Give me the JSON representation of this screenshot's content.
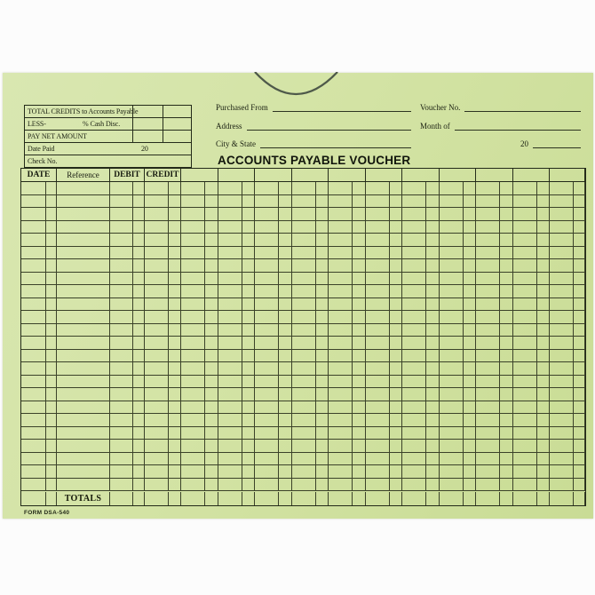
{
  "document": {
    "kind": "accounts-payable-voucher-envelope",
    "title": "ACCOUNTS PAYABLE VOUCHER",
    "form_number": "FORM DSA-540",
    "paper_color": "#d3e3a4",
    "line_color": "#2a3020"
  },
  "credits_box": {
    "row1_label": "TOTAL CREDITS to Accounts Payable",
    "row2_label": "LESS-",
    "row2_sublabel": "% Cash Disc.",
    "row3_label": "PAY NET AMOUNT",
    "row4_label": "Date Paid",
    "row4_year_prefix": "20",
    "row5_label": "Check No."
  },
  "header_fields": {
    "purchased_from_label": "Purchased From",
    "purchased_from_value": "",
    "address_label": "Address",
    "address_value": "",
    "city_state_label": "City & State",
    "city_state_value": "",
    "voucher_no_label": "Voucher No.",
    "voucher_no_value": "",
    "month_of_label": "Month of",
    "month_of_value": "",
    "year_prefix": "20",
    "year_value": ""
  },
  "table": {
    "column_headers": [
      "DATE",
      "Reference",
      "DEBIT",
      "CREDIT"
    ],
    "unlabeled_amount_columns": 11,
    "body_row_count": 24,
    "totals_label": "TOTALS"
  }
}
